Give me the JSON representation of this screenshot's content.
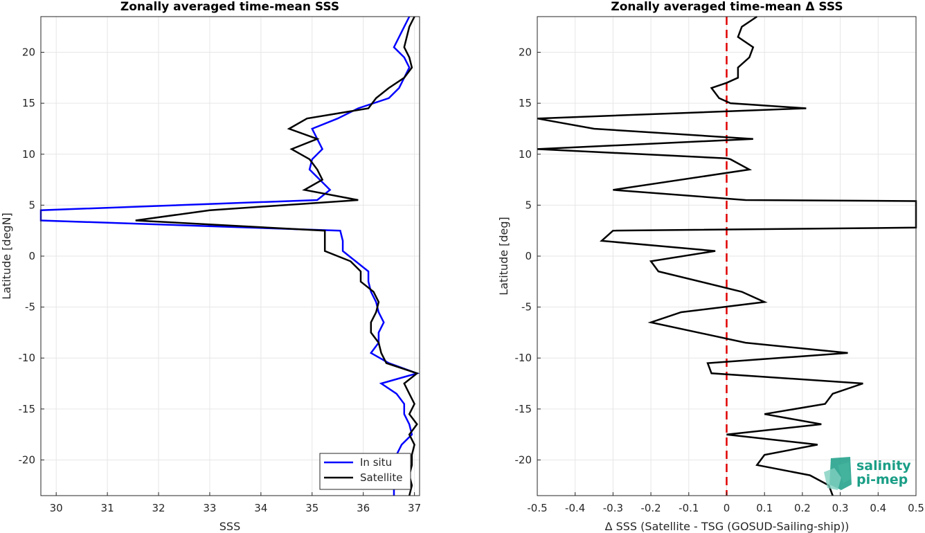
{
  "chart_data": [
    {
      "type": "line",
      "title": "Zonally averaged time-mean SSS",
      "xlabel": "SSS",
      "ylabel": "Latitude [degN]",
      "xlim": [
        29.7,
        37.1
      ],
      "ylim": [
        -23.5,
        23.5
      ],
      "xticks": [
        30,
        31,
        32,
        33,
        34,
        35,
        36,
        37
      ],
      "yticks": [
        -20,
        -15,
        -10,
        -5,
        0,
        5,
        10,
        15,
        20
      ],
      "grid": true,
      "legend": "bottom-right",
      "series": [
        {
          "name": "In situ",
          "color": "#0000ff",
          "points": [
            [
              36.9,
              23.5
            ],
            [
              36.8,
              22.5
            ],
            [
              36.7,
              21.5
            ],
            [
              36.6,
              20.5
            ],
            [
              36.8,
              19.5
            ],
            [
              36.9,
              18.5
            ],
            [
              36.8,
              17.5
            ],
            [
              36.7,
              16.5
            ],
            [
              36.5,
              15.5
            ],
            [
              35.9,
              14.5
            ],
            [
              35.5,
              13.5
            ],
            [
              35,
              12.5
            ],
            [
              35.1,
              11.5
            ],
            [
              35.2,
              10.5
            ],
            [
              35,
              9.5
            ],
            [
              34.95,
              8.5
            ],
            [
              35.15,
              7.5
            ],
            [
              35.35,
              6.5
            ],
            [
              35.1,
              5.5
            ],
            [
              29.7,
              4.5
            ],
            [
              29.7,
              3.5
            ],
            [
              35.55,
              2.5
            ],
            [
              35.6,
              1.5
            ],
            [
              35.6,
              0.5
            ],
            [
              35.85,
              -0.5
            ],
            [
              36.1,
              -1.5
            ],
            [
              36.1,
              -2.5
            ],
            [
              36.15,
              -3.5
            ],
            [
              36.25,
              -4.5
            ],
            [
              36.3,
              -5.5
            ],
            [
              36.4,
              -6.5
            ],
            [
              36.3,
              -7.5
            ],
            [
              36.3,
              -8.5
            ],
            [
              36.15,
              -9.5
            ],
            [
              36.5,
              -10.5
            ],
            [
              37.05,
              -11.5
            ],
            [
              36.35,
              -12.5
            ],
            [
              36.65,
              -13.5
            ],
            [
              36.8,
              -14.5
            ],
            [
              36.8,
              -15.5
            ],
            [
              36.9,
              -16.5
            ],
            [
              36.95,
              -17.5
            ],
            [
              36.75,
              -18.5
            ],
            [
              36.65,
              -19.5
            ],
            [
              36.6,
              -20.5
            ],
            [
              36.6,
              -21.5
            ],
            [
              36.6,
              -22.5
            ],
            [
              36.6,
              -23.5
            ]
          ]
        },
        {
          "name": "Satellite",
          "color": "#000000",
          "points": [
            [
              37,
              23.5
            ],
            [
              36.9,
              22.5
            ],
            [
              36.85,
              21.5
            ],
            [
              36.8,
              20.5
            ],
            [
              36.9,
              19.5
            ],
            [
              36.95,
              18.5
            ],
            [
              36.8,
              17.5
            ],
            [
              36.5,
              16.5
            ],
            [
              36.25,
              15.5
            ],
            [
              36.1,
              14.5
            ],
            [
              34.9,
              13.5
            ],
            [
              34.55,
              12.5
            ],
            [
              35.1,
              11.5
            ],
            [
              34.6,
              10.5
            ],
            [
              34.95,
              9.5
            ],
            [
              35.1,
              8.5
            ],
            [
              35.2,
              7.5
            ],
            [
              34.85,
              6.5
            ],
            [
              35.9,
              5.5
            ],
            [
              33,
              4.5
            ],
            [
              31.55,
              3.5
            ],
            [
              35.25,
              2.5
            ],
            [
              35.25,
              1.5
            ],
            [
              35.25,
              0.5
            ],
            [
              35.75,
              -0.5
            ],
            [
              35.95,
              -1.5
            ],
            [
              35.95,
              -2.5
            ],
            [
              36.2,
              -3.5
            ],
            [
              36.3,
              -4.5
            ],
            [
              36.25,
              -5.5
            ],
            [
              36.15,
              -6.5
            ],
            [
              36.15,
              -7.5
            ],
            [
              36.3,
              -8.5
            ],
            [
              36.35,
              -9.5
            ],
            [
              36.45,
              -10.5
            ],
            [
              37.05,
              -11.5
            ],
            [
              36.8,
              -12.5
            ],
            [
              36.9,
              -13.5
            ],
            [
              37,
              -14.5
            ],
            [
              36.9,
              -15.5
            ],
            [
              37.05,
              -16.5
            ],
            [
              36.9,
              -17.5
            ],
            [
              37,
              -18.5
            ],
            [
              36.95,
              -19.5
            ],
            [
              36.95,
              -20.5
            ],
            [
              36.9,
              -21.5
            ],
            [
              36.95,
              -22.5
            ],
            [
              36.9,
              -23.5
            ]
          ]
        }
      ]
    },
    {
      "type": "line",
      "title": "Zonally averaged time-mean Δ SSS",
      "xlabel": "Δ SSS (Satellite - TSG (GOSUD-Sailing-ship))",
      "ylabel": "Latitude [deg]",
      "xlim": [
        -0.5,
        0.5
      ],
      "ylim": [
        -23.5,
        23.5
      ],
      "xticks": [
        -0.5,
        -0.4,
        -0.3,
        -0.2,
        -0.1,
        0,
        0.1,
        0.2,
        0.3,
        0.4,
        0.5
      ],
      "xtick_labels": [
        "-0.5",
        "-0.4",
        "-0.3",
        "-0.2",
        "-0.1",
        "0",
        "0.1",
        "0.2",
        "0.3",
        "0.4",
        "0.5"
      ],
      "yticks": [
        -20,
        -15,
        -10,
        -5,
        0,
        5,
        10,
        15,
        20
      ],
      "grid": true,
      "zero_line_color": "#e00000",
      "series": [
        {
          "color": "#000000",
          "points": [
            [
              0.08,
              23.5
            ],
            [
              0.04,
              22.5
            ],
            [
              0.03,
              21.5
            ],
            [
              0.07,
              20.5
            ],
            [
              0.06,
              19.5
            ],
            [
              0.03,
              18.5
            ],
            [
              0.03,
              17.5
            ],
            [
              0,
              17
            ],
            [
              -0.04,
              16.5
            ],
            [
              -0.02,
              15.5
            ],
            [
              0.01,
              15
            ],
            [
              0.21,
              14.5
            ],
            [
              -0.5,
              13.5
            ],
            [
              -0.35,
              12.5
            ],
            [
              0.07,
              11.5
            ],
            [
              -0.5,
              10.5
            ],
            [
              0,
              9.6
            ],
            [
              0.01,
              9.5
            ],
            [
              0.06,
              8.5
            ],
            [
              -0.3,
              6.5
            ],
            [
              0.05,
              5.5
            ],
            [
              0.5,
              5.4
            ],
            [
              0.5,
              2.8
            ],
            [
              -0.3,
              2.5
            ],
            [
              -0.33,
              1.5
            ],
            [
              -0.03,
              0.5
            ],
            [
              -0.2,
              -0.5
            ],
            [
              -0.18,
              -1.5
            ],
            [
              0.04,
              -3.5
            ],
            [
              0.1,
              -4.5
            ],
            [
              -0.12,
              -5.5
            ],
            [
              -0.2,
              -6.5
            ],
            [
              0.05,
              -8.5
            ],
            [
              0.32,
              -9.5
            ],
            [
              -0.05,
              -10.5
            ],
            [
              -0.04,
              -11.5
            ],
            [
              0.36,
              -12.5
            ],
            [
              0.28,
              -13.5
            ],
            [
              0.26,
              -14.5
            ],
            [
              0.1,
              -15.5
            ],
            [
              0.25,
              -16.5
            ],
            [
              0,
              -17.5
            ],
            [
              0.24,
              -18.5
            ],
            [
              0.1,
              -19.5
            ],
            [
              0.08,
              -20.5
            ],
            [
              0.22,
              -21.5
            ],
            [
              0.27,
              -22.5
            ],
            [
              0.28,
              -23.5
            ]
          ]
        }
      ]
    }
  ],
  "logo": {
    "line1": "salinity",
    "line2": "pi-mep",
    "color": "#1a9e86"
  }
}
